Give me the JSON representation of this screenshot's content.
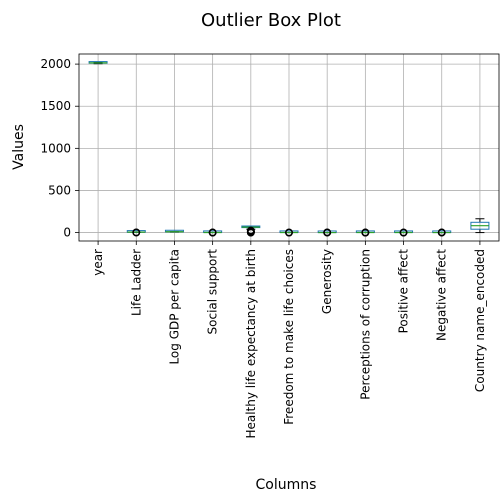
{
  "chart_data": {
    "type": "box",
    "title": "Outlier Box Plot",
    "xlabel": "Columns",
    "ylabel": "Values",
    "ylim": [
      -100,
      2120
    ],
    "yticks": [
      0,
      500,
      1000,
      1500,
      2000
    ],
    "grid": true,
    "colors": {
      "box": "#1f77b4",
      "median": "#2ca02c",
      "grid": "#b0b0b0"
    },
    "categories": [
      "year",
      "Life Ladder",
      "Log GDP per capita",
      "Social support",
      "Healthy life expectancy at birth",
      "Freedom to make life choices",
      "Generosity",
      "Perceptions of corruption",
      "Positive affect",
      "Negative affect",
      "Country name_encoded"
    ],
    "boxes": [
      {
        "name": "year",
        "whislo": 2005,
        "q1": 2011,
        "med": 2015,
        "q3": 2019,
        "whishi": 2023,
        "fliers": []
      },
      {
        "name": "Life Ladder",
        "whislo": 2.2,
        "q1": 4.6,
        "med": 5.4,
        "q3": 6.3,
        "whishi": 8.0,
        "fliers": [
          1.3,
          1.7
        ]
      },
      {
        "name": "Log GDP per capita",
        "whislo": 5.5,
        "q1": 8.5,
        "med": 9.5,
        "q3": 10.4,
        "whishi": 11.7,
        "fliers": []
      },
      {
        "name": "Social support",
        "whislo": 0.4,
        "q1": 0.74,
        "med": 0.83,
        "q3": 0.9,
        "whishi": 0.99,
        "fliers": [
          0.2,
          0.25,
          0.3
        ]
      },
      {
        "name": "Healthy life expectancy at birth",
        "whislo": 40,
        "q1": 59,
        "med": 65,
        "q3": 69,
        "whishi": 77,
        "fliers": [
          0,
          1,
          2,
          5,
          7,
          10,
          12,
          15,
          20,
          25
        ]
      },
      {
        "name": "Freedom to make life choices",
        "whislo": 0.3,
        "q1": 0.66,
        "med": 0.77,
        "q3": 0.86,
        "whishi": 0.98,
        "fliers": [
          0.2,
          0.25
        ]
      },
      {
        "name": "Generosity",
        "whislo": -0.34,
        "q1": -0.11,
        "med": -0.02,
        "q3": 0.09,
        "whishi": 0.4,
        "fliers": [
          0.5,
          0.6,
          0.7
        ]
      },
      {
        "name": "Perceptions of corruption",
        "whislo": 0.35,
        "q1": 0.69,
        "med": 0.8,
        "q3": 0.87,
        "whishi": 0.98,
        "fliers": [
          0.03,
          0.1,
          0.2
        ]
      },
      {
        "name": "Positive affect",
        "whislo": 0.3,
        "q1": 0.57,
        "med": 0.66,
        "q3": 0.74,
        "whishi": 0.88,
        "fliers": [
          0.18,
          0.22
        ]
      },
      {
        "name": "Negative affect",
        "whislo": 0.08,
        "q1": 0.21,
        "med": 0.26,
        "q3": 0.33,
        "whishi": 0.5,
        "fliers": [
          0.6,
          0.65,
          0.7
        ]
      },
      {
        "name": "Country name_encoded",
        "whislo": 0,
        "q1": 40,
        "med": 82,
        "q3": 122,
        "whishi": 164,
        "fliers": []
      }
    ]
  }
}
